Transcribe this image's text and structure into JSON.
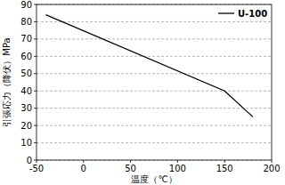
{
  "chart_data": {
    "type": "line",
    "x_label": "温度（℃）",
    "y_label": "引張応力（降伏）MPa",
    "series": [
      {
        "name": "U-100",
        "color": "#000000",
        "x": [
          -40,
          150,
          180
        ],
        "values": [
          84,
          40,
          25
        ]
      }
    ],
    "xlim": [
      -50,
      200
    ],
    "xticks": [
      -50,
      0,
      50,
      100,
      150,
      200
    ],
    "ylim": [
      0,
      90
    ],
    "yticks": [
      0,
      10,
      20,
      30,
      40,
      50,
      60,
      70,
      80,
      90
    ],
    "grid": true,
    "legend": "upper right"
  }
}
